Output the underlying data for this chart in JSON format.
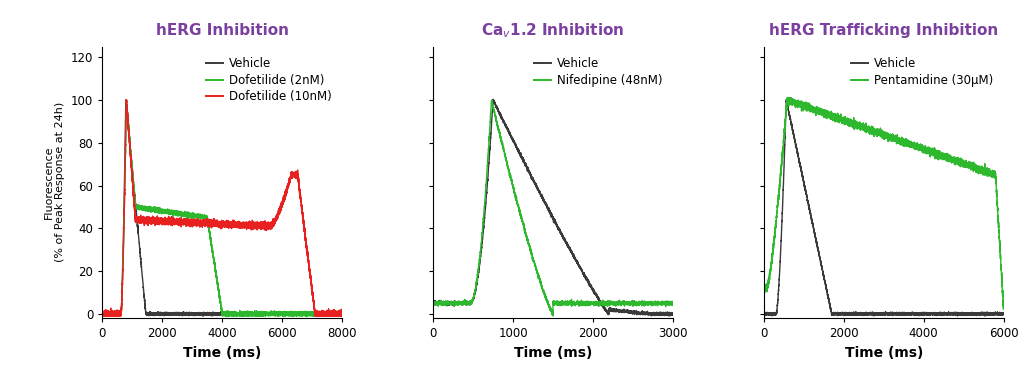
{
  "title_color": "#7B3FA0",
  "panel1_title": "hERG Inhibition",
  "panel2_title": "Ca$_v$1.2 Inhibition",
  "panel3_title": "hERG Trafficking Inhibition",
  "ylabel": "Fluorescence\n(% of Peak Response at 24h)",
  "xlabel": "Time (ms)",
  "ylabel_fontsize": 8.0,
  "xlabel_fontsize": 10,
  "title_fontsize": 11,
  "tick_fontsize": 8.5,
  "legend_fontsize": 8.5,
  "panel1_xlim": [
    0,
    8000
  ],
  "panel2_xlim": [
    0,
    3000
  ],
  "panel3_xlim": [
    0,
    6000
  ],
  "ylim": [
    -2,
    125
  ],
  "yticks": [
    0,
    20,
    40,
    60,
    80,
    100,
    120
  ],
  "panel1_xticks": [
    0,
    2000,
    4000,
    6000,
    8000
  ],
  "panel2_xticks": [
    0,
    1000,
    2000,
    3000
  ],
  "panel3_xticks": [
    0,
    2000,
    4000,
    6000
  ],
  "background_color": "#ffffff",
  "colors": {
    "vehicle": "#3a3a3a",
    "green": "#2db82d",
    "red": "#e82020"
  },
  "line_width": 1.0
}
